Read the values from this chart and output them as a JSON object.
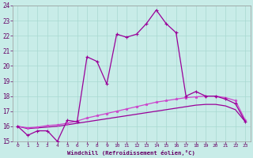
{
  "xlabel": "Windchill (Refroidissement éolien,°C)",
  "bg_color": "#c8ece8",
  "grid_color": "#a8d8d0",
  "line_color": "#990099",
  "line_color2": "#cc44cc",
  "xlim": [
    -0.5,
    23.5
  ],
  "ylim": [
    15,
    24
  ],
  "xticks": [
    0,
    1,
    2,
    3,
    4,
    5,
    6,
    7,
    8,
    9,
    10,
    11,
    12,
    13,
    14,
    15,
    16,
    17,
    18,
    19,
    20,
    21,
    22,
    23
  ],
  "yticks": [
    15,
    16,
    17,
    18,
    19,
    20,
    21,
    22,
    23,
    24
  ],
  "line1_x": [
    0,
    1,
    2,
    3,
    4,
    5,
    6,
    7,
    8,
    9,
    10,
    11,
    12,
    13,
    14,
    15,
    16,
    17,
    18,
    19,
    20,
    21,
    22,
    23
  ],
  "line1_y": [
    16.0,
    15.4,
    15.7,
    15.7,
    15.0,
    16.4,
    16.3,
    20.6,
    20.3,
    18.8,
    22.1,
    21.9,
    22.1,
    22.8,
    23.7,
    22.8,
    22.2,
    18.0,
    18.3,
    18.0,
    18.0,
    17.8,
    17.5,
    16.3
  ],
  "line2_x": [
    0,
    1,
    2,
    3,
    4,
    5,
    6,
    7,
    8,
    9,
    10,
    11,
    12,
    13,
    14,
    15,
    16,
    17,
    18,
    19,
    20,
    21,
    22,
    23
  ],
  "line2_y": [
    16.0,
    15.9,
    15.95,
    16.05,
    16.1,
    16.2,
    16.35,
    16.55,
    16.7,
    16.85,
    17.0,
    17.15,
    17.3,
    17.45,
    17.6,
    17.7,
    17.8,
    17.9,
    17.95,
    18.0,
    18.0,
    17.9,
    17.7,
    16.4
  ],
  "line3_x": [
    0,
    1,
    2,
    3,
    4,
    5,
    6,
    7,
    8,
    9,
    10,
    11,
    12,
    13,
    14,
    15,
    16,
    17,
    18,
    19,
    20,
    21,
    22,
    23
  ],
  "line3_y": [
    16.0,
    15.85,
    15.9,
    15.95,
    16.0,
    16.1,
    16.2,
    16.3,
    16.4,
    16.5,
    16.6,
    16.7,
    16.8,
    16.9,
    17.0,
    17.1,
    17.2,
    17.3,
    17.4,
    17.45,
    17.45,
    17.35,
    17.1,
    16.3
  ]
}
